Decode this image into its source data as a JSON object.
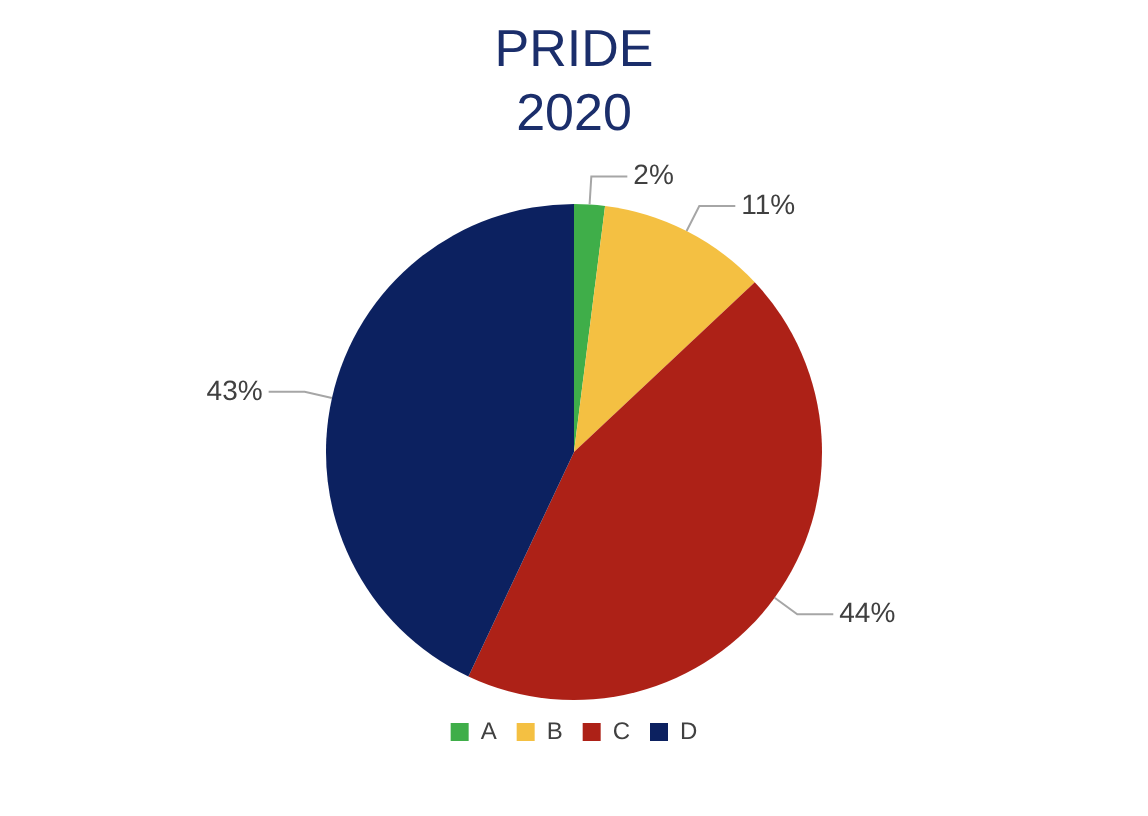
{
  "chart_data": {
    "type": "pie",
    "title": "PRIDE 2020",
    "categories": [
      "A",
      "B",
      "C",
      "D"
    ],
    "values": [
      2,
      11,
      44,
      43
    ],
    "colors": [
      "#3fae49",
      "#f4c042",
      "#ad2117",
      "#0c2160"
    ],
    "value_labels": [
      "2%",
      "11%",
      "44%",
      "43%"
    ],
    "legend": "bottom"
  }
}
